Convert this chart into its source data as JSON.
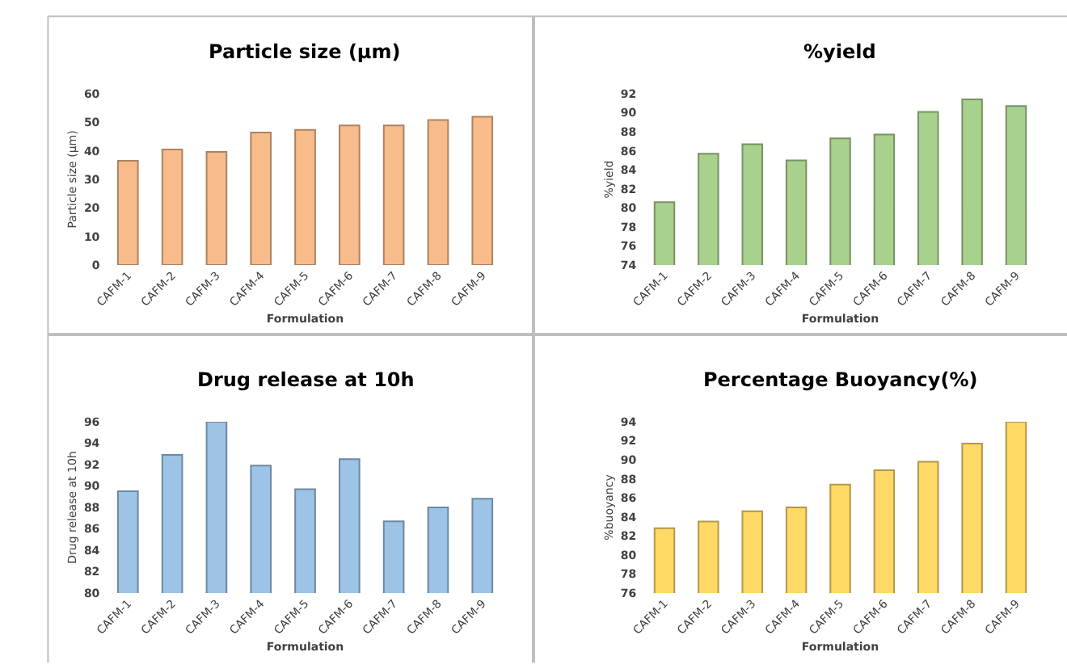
{
  "chart_data": [
    {
      "type": "bar",
      "title": "Particle size (µm)",
      "xlabel": "Formulation",
      "ylabel": "Particle size (µm)",
      "categories": [
        "CAFM-1",
        "CAFM-2",
        "CAFM-3",
        "CAFM-4",
        "CAFM-5",
        "CAFM-6",
        "CAFM-7",
        "CAFM-8",
        "CAFM-9"
      ],
      "values": [
        36.5,
        40.5,
        39.6,
        46.4,
        47.3,
        48.9,
        48.9,
        50.8,
        51.9
      ],
      "color": "#f8bb8a",
      "ylim": [
        0,
        60
      ],
      "yticks": [
        0,
        10,
        20,
        30,
        40,
        50,
        60
      ],
      "grid": false,
      "legend": false
    },
    {
      "type": "bar",
      "title": "%yield",
      "xlabel": "Formulation",
      "ylabel": "%yield",
      "categories": [
        "CAFM-1",
        "CAFM-2",
        "CAFM-3",
        "CAFM-4",
        "CAFM-5",
        "CAFM-6",
        "CAFM-7",
        "CAFM-8",
        "CAFM-9"
      ],
      "values": [
        80.6,
        85.7,
        86.7,
        85.0,
        87.3,
        87.7,
        90.1,
        91.4,
        90.7
      ],
      "color": "#a9d18e",
      "ylim": [
        74,
        92
      ],
      "yticks": [
        74,
        76,
        78,
        80,
        82,
        84,
        86,
        88,
        90,
        92
      ],
      "grid": false,
      "legend": false
    },
    {
      "type": "bar",
      "title": "Drug release at 10h",
      "xlabel": "Formulation",
      "ylabel": "Drug release at 10h",
      "categories": [
        "CAFM-1",
        "CAFM-2",
        "CAFM-3",
        "CAFM-4",
        "CAFM-5",
        "CAFM-6",
        "CAFM-7",
        "CAFM-8",
        "CAFM-9"
      ],
      "values": [
        89.5,
        92.9,
        96.0,
        91.9,
        89.7,
        92.5,
        86.7,
        88.0,
        88.8
      ],
      "color": "#9dc3e6",
      "ylim": [
        80,
        96
      ],
      "yticks": [
        80,
        82,
        84,
        86,
        88,
        90,
        92,
        94,
        96
      ],
      "grid": false,
      "legend": false
    },
    {
      "type": "bar",
      "title": "Percentage Buoyancy(%)",
      "xlabel": "Formulation",
      "ylabel": "%buoyancy",
      "categories": [
        "CAFM-1",
        "CAFM-2",
        "CAFM-3",
        "CAFM-4",
        "CAFM-5",
        "CAFM-6",
        "CAFM-7",
        "CAFM-8",
        "CAFM-9"
      ],
      "values": [
        82.8,
        83.5,
        84.6,
        85.0,
        87.4,
        88.9,
        89.8,
        91.7,
        94.0
      ],
      "color": "#ffd966",
      "ylim": [
        76,
        94
      ],
      "yticks": [
        76,
        78,
        80,
        82,
        84,
        86,
        88,
        90,
        92,
        94
      ],
      "grid": false,
      "legend": false
    }
  ]
}
